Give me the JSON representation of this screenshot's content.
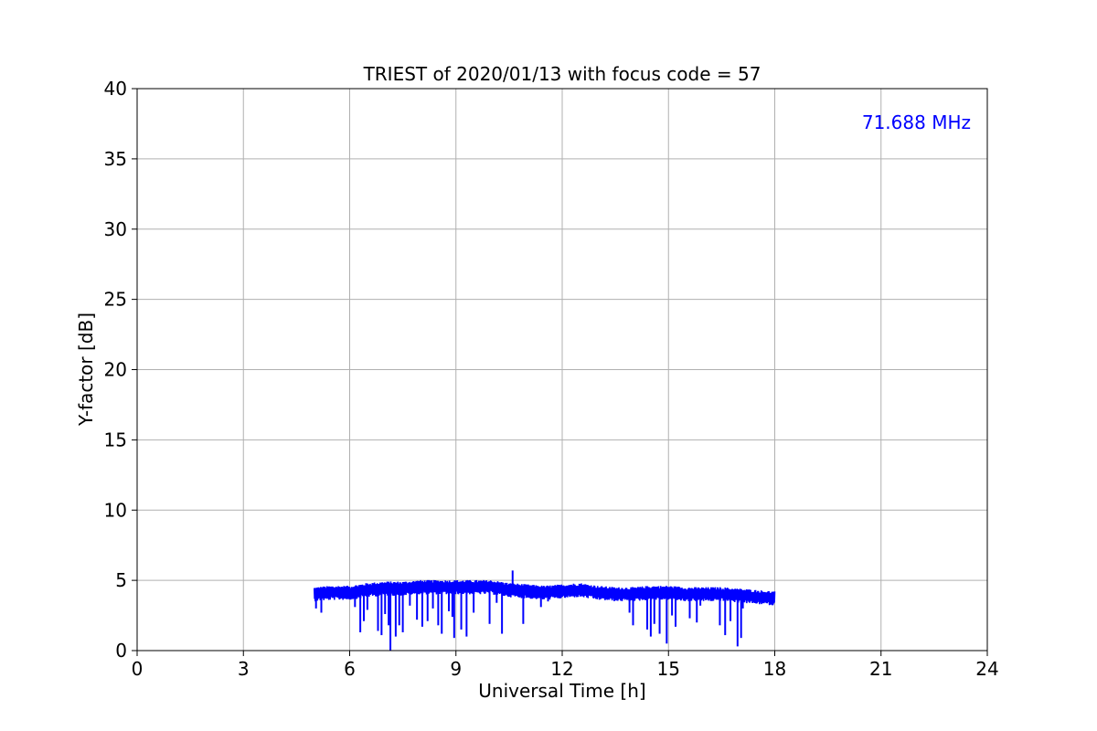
{
  "chart_data": {
    "type": "line",
    "title": "TRIEST of 2020/01/13 with focus code = 57",
    "xlabel": "Universal Time [h]",
    "ylabel": "Y-factor [dB]",
    "xlim": [
      0,
      24
    ],
    "ylim": [
      0,
      40
    ],
    "xticks": [
      "0",
      "3",
      "6",
      "9",
      "12",
      "15",
      "18",
      "21",
      "24"
    ],
    "yticks": [
      "0",
      "5",
      "10",
      "15",
      "20",
      "25",
      "30",
      "35",
      "40"
    ],
    "grid": true,
    "annotation": {
      "text": "71.688 MHz",
      "color": "#0000ff",
      "placement": "top-right"
    },
    "series": [
      {
        "color": "#0000ff",
        "x_range": [
          5.0,
          18.0
        ],
        "baseline": [
          [
            5.0,
            4.1
          ],
          [
            5.5,
            4.2
          ],
          [
            6.0,
            4.2
          ],
          [
            6.5,
            4.4
          ],
          [
            7.0,
            4.5
          ],
          [
            7.5,
            4.5
          ],
          [
            8.0,
            4.6
          ],
          [
            8.5,
            4.6
          ],
          [
            9.0,
            4.6
          ],
          [
            9.5,
            4.6
          ],
          [
            10.0,
            4.6
          ],
          [
            10.5,
            4.4
          ],
          [
            11.0,
            4.3
          ],
          [
            11.5,
            4.2
          ],
          [
            12.0,
            4.3
          ],
          [
            12.5,
            4.4
          ],
          [
            13.0,
            4.2
          ],
          [
            13.5,
            4.1
          ],
          [
            14.0,
            4.1
          ],
          [
            14.5,
            4.2
          ],
          [
            15.0,
            4.2
          ],
          [
            15.5,
            4.1
          ],
          [
            16.0,
            4.1
          ],
          [
            16.5,
            4.1
          ],
          [
            17.0,
            4.0
          ],
          [
            17.5,
            3.9
          ],
          [
            18.0,
            3.8
          ]
        ],
        "spikes": [
          [
            5.05,
            3.0
          ],
          [
            5.2,
            2.7
          ],
          [
            6.15,
            3.1
          ],
          [
            6.3,
            1.3
          ],
          [
            6.4,
            2.1
          ],
          [
            6.5,
            2.9
          ],
          [
            6.8,
            1.4
          ],
          [
            6.9,
            1.1
          ],
          [
            7.0,
            2.6
          ],
          [
            7.1,
            1.8
          ],
          [
            7.15,
            0.0
          ],
          [
            7.3,
            1.0
          ],
          [
            7.4,
            1.8
          ],
          [
            7.5,
            1.3
          ],
          [
            7.7,
            3.2
          ],
          [
            7.9,
            2.2
          ],
          [
            8.05,
            1.7
          ],
          [
            8.2,
            2.1
          ],
          [
            8.35,
            3.0
          ],
          [
            8.5,
            1.8
          ],
          [
            8.6,
            1.2
          ],
          [
            8.8,
            2.8
          ],
          [
            8.9,
            2.4
          ],
          [
            8.95,
            0.9
          ],
          [
            9.15,
            1.5
          ],
          [
            9.3,
            1.0
          ],
          [
            9.5,
            2.7
          ],
          [
            9.95,
            1.9
          ],
          [
            10.15,
            3.4
          ],
          [
            10.3,
            1.2
          ],
          [
            10.6,
            5.7
          ],
          [
            10.9,
            1.9
          ],
          [
            11.4,
            3.1
          ],
          [
            11.6,
            3.5
          ],
          [
            13.9,
            2.7
          ],
          [
            14.0,
            1.8
          ],
          [
            14.4,
            1.5
          ],
          [
            14.5,
            1.0
          ],
          [
            14.6,
            1.9
          ],
          [
            14.75,
            1.2
          ],
          [
            14.95,
            0.5
          ],
          [
            15.1,
            2.5
          ],
          [
            15.2,
            1.7
          ],
          [
            15.6,
            2.3
          ],
          [
            15.8,
            2.0
          ],
          [
            15.9,
            3.2
          ],
          [
            16.45,
            1.8
          ],
          [
            16.6,
            1.1
          ],
          [
            16.75,
            2.1
          ],
          [
            16.95,
            0.3
          ],
          [
            17.05,
            0.9
          ],
          [
            17.1,
            3.0
          ],
          [
            17.5,
            3.4
          ],
          [
            17.8,
            3.5
          ],
          [
            17.95,
            3.4
          ]
        ]
      }
    ]
  }
}
